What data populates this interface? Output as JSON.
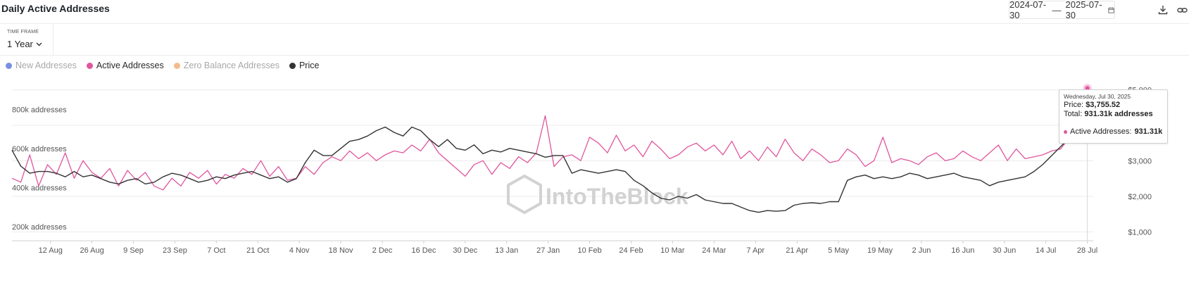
{
  "header": {
    "title": "Daily Active Addresses",
    "date_start": "2024-07-30",
    "date_sep": "—",
    "date_end": "2025-07-30",
    "icons": [
      "calendar-icon",
      "download-icon",
      "link-icon"
    ]
  },
  "timeframe": {
    "label": "TIME FRAME",
    "value": "1 Year"
  },
  "legend": [
    {
      "name": "New Addresses",
      "color": "#7b8fe0",
      "active": false
    },
    {
      "name": "Active Addresses",
      "color": "#e0569e",
      "active": true
    },
    {
      "name": "Zero Balance Addresses",
      "color": "#f5bb8c",
      "active": false
    },
    {
      "name": "Price",
      "color": "#333333",
      "active": true
    }
  ],
  "tooltip": {
    "date": "Wednesday, Jul 30, 2025",
    "price_label": "Price:",
    "price_value": "$3,755.52",
    "total_label": "Total:",
    "total_value": "931.31k addresses",
    "series_label": "Active Addresses:",
    "series_value": "931.31k"
  },
  "watermark": "IntoTheBlock",
  "chart_data": {
    "type": "line",
    "left_axis": {
      "ticks": [
        200000,
        400000,
        600000,
        800000
      ],
      "labels": [
        "200k addresses",
        "400k addresses",
        "600k addresses",
        "800k addresses"
      ],
      "range": [
        150000,
        950000
      ]
    },
    "right_axis": {
      "ticks": [
        1000,
        2000,
        3000,
        4000,
        5000
      ],
      "labels": [
        "$1,000",
        "$2,000",
        "$3,000",
        "$4,000",
        "$5,000"
      ],
      "range": [
        750,
        5150
      ]
    },
    "x_labels": [
      "12 Aug",
      "26 Aug",
      "9 Sep",
      "23 Sep",
      "7 Oct",
      "21 Oct",
      "4 Nov",
      "18 Nov",
      "2 Dec",
      "16 Dec",
      "30 Dec",
      "13 Jan",
      "27 Jan",
      "10 Feb",
      "24 Feb",
      "10 Mar",
      "24 Mar",
      "7 Apr",
      "21 Apr",
      "5 May",
      "19 May",
      "2 Jun",
      "16 Jun",
      "30 Jun",
      "14 Jul",
      "28 Jul"
    ],
    "x_label_days": [
      13,
      27,
      41,
      55,
      69,
      83,
      97,
      111,
      125,
      139,
      153,
      167,
      181,
      195,
      209,
      223,
      237,
      251,
      265,
      279,
      293,
      307,
      321,
      335,
      349,
      363
    ],
    "series": [
      {
        "name": "Active Addresses",
        "color": "#e0569e",
        "axis": "left",
        "points": [
          [
            0,
            470
          ],
          [
            3,
            450
          ],
          [
            6,
            590
          ],
          [
            9,
            430
          ],
          [
            12,
            540
          ],
          [
            15,
            490
          ],
          [
            18,
            600
          ],
          [
            21,
            470
          ],
          [
            24,
            560
          ],
          [
            27,
            500
          ],
          [
            30,
            470
          ],
          [
            33,
            520
          ],
          [
            36,
            430
          ],
          [
            39,
            510
          ],
          [
            42,
            460
          ],
          [
            45,
            500
          ],
          [
            48,
            430
          ],
          [
            51,
            410
          ],
          [
            54,
            470
          ],
          [
            57,
            430
          ],
          [
            60,
            500
          ],
          [
            63,
            470
          ],
          [
            66,
            510
          ],
          [
            69,
            440
          ],
          [
            72,
            490
          ],
          [
            75,
            470
          ],
          [
            78,
            520
          ],
          [
            81,
            490
          ],
          [
            84,
            560
          ],
          [
            87,
            480
          ],
          [
            90,
            530
          ],
          [
            93,
            460
          ],
          [
            96,
            470
          ],
          [
            99,
            530
          ],
          [
            102,
            490
          ],
          [
            105,
            550
          ],
          [
            108,
            580
          ],
          [
            111,
            560
          ],
          [
            114,
            610
          ],
          [
            117,
            570
          ],
          [
            120,
            600
          ],
          [
            123,
            560
          ],
          [
            126,
            590
          ],
          [
            129,
            610
          ],
          [
            132,
            600
          ],
          [
            135,
            640
          ],
          [
            138,
            610
          ],
          [
            141,
            670
          ],
          [
            144,
            600
          ],
          [
            147,
            560
          ],
          [
            150,
            520
          ],
          [
            153,
            480
          ],
          [
            156,
            540
          ],
          [
            159,
            560
          ],
          [
            162,
            490
          ],
          [
            165,
            550
          ],
          [
            168,
            520
          ],
          [
            171,
            580
          ],
          [
            174,
            550
          ],
          [
            177,
            600
          ],
          [
            180,
            790
          ],
          [
            183,
            530
          ],
          [
            186,
            580
          ],
          [
            189,
            590
          ],
          [
            192,
            560
          ],
          [
            195,
            680
          ],
          [
            198,
            650
          ],
          [
            201,
            600
          ],
          [
            204,
            690
          ],
          [
            207,
            610
          ],
          [
            210,
            640
          ],
          [
            213,
            580
          ],
          [
            216,
            660
          ],
          [
            219,
            620
          ],
          [
            222,
            570
          ],
          [
            225,
            590
          ],
          [
            228,
            630
          ],
          [
            231,
            650
          ],
          [
            234,
            610
          ],
          [
            237,
            640
          ],
          [
            240,
            590
          ],
          [
            243,
            660
          ],
          [
            246,
            570
          ],
          [
            249,
            610
          ],
          [
            252,
            560
          ],
          [
            255,
            630
          ],
          [
            258,
            580
          ],
          [
            261,
            670
          ],
          [
            264,
            600
          ],
          [
            267,
            560
          ],
          [
            270,
            620
          ],
          [
            273,
            590
          ],
          [
            276,
            550
          ],
          [
            279,
            560
          ],
          [
            282,
            620
          ],
          [
            285,
            590
          ],
          [
            288,
            530
          ],
          [
            291,
            560
          ],
          [
            294,
            680
          ],
          [
            297,
            550
          ],
          [
            300,
            570
          ],
          [
            303,
            560
          ],
          [
            306,
            540
          ],
          [
            309,
            580
          ],
          [
            312,
            600
          ],
          [
            315,
            560
          ],
          [
            318,
            570
          ],
          [
            321,
            610
          ],
          [
            324,
            580
          ],
          [
            327,
            560
          ],
          [
            330,
            600
          ],
          [
            333,
            640
          ],
          [
            336,
            560
          ],
          [
            339,
            620
          ],
          [
            342,
            570
          ],
          [
            345,
            580
          ],
          [
            348,
            590
          ],
          [
            351,
            610
          ],
          [
            354,
            620
          ],
          [
            357,
            680
          ],
          [
            360,
            730
          ],
          [
            362,
            760
          ],
          [
            363,
            931
          ]
        ]
      },
      {
        "name": "Price",
        "color": "#333333",
        "axis": "right",
        "points": [
          [
            0,
            3300
          ],
          [
            3,
            2850
          ],
          [
            6,
            2650
          ],
          [
            9,
            2700
          ],
          [
            12,
            2700
          ],
          [
            15,
            2650
          ],
          [
            18,
            2550
          ],
          [
            21,
            2700
          ],
          [
            24,
            2550
          ],
          [
            27,
            2600
          ],
          [
            30,
            2500
          ],
          [
            33,
            2400
          ],
          [
            36,
            2350
          ],
          [
            39,
            2450
          ],
          [
            42,
            2500
          ],
          [
            45,
            2350
          ],
          [
            48,
            2400
          ],
          [
            51,
            2550
          ],
          [
            54,
            2650
          ],
          [
            57,
            2600
          ],
          [
            60,
            2500
          ],
          [
            63,
            2400
          ],
          [
            66,
            2450
          ],
          [
            69,
            2550
          ],
          [
            72,
            2500
          ],
          [
            75,
            2600
          ],
          [
            78,
            2650
          ],
          [
            81,
            2700
          ],
          [
            84,
            2600
          ],
          [
            87,
            2500
          ],
          [
            90,
            2550
          ],
          [
            93,
            2400
          ],
          [
            96,
            2500
          ],
          [
            99,
            2950
          ],
          [
            102,
            3300
          ],
          [
            105,
            3150
          ],
          [
            108,
            3150
          ],
          [
            111,
            3350
          ],
          [
            114,
            3550
          ],
          [
            117,
            3600
          ],
          [
            120,
            3700
          ],
          [
            123,
            3850
          ],
          [
            126,
            3950
          ],
          [
            129,
            3800
          ],
          [
            132,
            3700
          ],
          [
            135,
            3950
          ],
          [
            138,
            3850
          ],
          [
            141,
            3600
          ],
          [
            144,
            3400
          ],
          [
            147,
            3600
          ],
          [
            150,
            3350
          ],
          [
            153,
            3300
          ],
          [
            156,
            3450
          ],
          [
            159,
            3200
          ],
          [
            162,
            3300
          ],
          [
            165,
            3250
          ],
          [
            168,
            3350
          ],
          [
            171,
            3300
          ],
          [
            174,
            3250
          ],
          [
            177,
            3200
          ],
          [
            180,
            3100
          ],
          [
            183,
            3150
          ],
          [
            186,
            3150
          ],
          [
            189,
            2650
          ],
          [
            192,
            2750
          ],
          [
            195,
            2700
          ],
          [
            198,
            2650
          ],
          [
            201,
            2700
          ],
          [
            204,
            2750
          ],
          [
            207,
            2700
          ],
          [
            210,
            2450
          ],
          [
            213,
            2300
          ],
          [
            216,
            2100
          ],
          [
            219,
            1950
          ],
          [
            222,
            1900
          ],
          [
            225,
            2000
          ],
          [
            228,
            1950
          ],
          [
            231,
            2050
          ],
          [
            234,
            1900
          ],
          [
            237,
            1850
          ],
          [
            240,
            1800
          ],
          [
            243,
            1800
          ],
          [
            246,
            1700
          ],
          [
            249,
            1600
          ],
          [
            252,
            1550
          ],
          [
            255,
            1600
          ],
          [
            258,
            1580
          ],
          [
            261,
            1600
          ],
          [
            264,
            1750
          ],
          [
            267,
            1800
          ],
          [
            270,
            1820
          ],
          [
            273,
            1800
          ],
          [
            276,
            1850
          ],
          [
            279,
            1850
          ],
          [
            282,
            2450
          ],
          [
            285,
            2550
          ],
          [
            288,
            2600
          ],
          [
            291,
            2500
          ],
          [
            294,
            2550
          ],
          [
            297,
            2500
          ],
          [
            300,
            2550
          ],
          [
            303,
            2650
          ],
          [
            306,
            2600
          ],
          [
            309,
            2500
          ],
          [
            312,
            2550
          ],
          [
            315,
            2600
          ],
          [
            318,
            2650
          ],
          [
            321,
            2550
          ],
          [
            324,
            2500
          ],
          [
            327,
            2450
          ],
          [
            330,
            2300
          ],
          [
            333,
            2400
          ],
          [
            336,
            2450
          ],
          [
            339,
            2500
          ],
          [
            342,
            2550
          ],
          [
            345,
            2700
          ],
          [
            348,
            2900
          ],
          [
            351,
            3150
          ],
          [
            354,
            3400
          ],
          [
            357,
            3650
          ],
          [
            360,
            3750
          ],
          [
            362,
            3700
          ],
          [
            363,
            3755
          ]
        ]
      }
    ],
    "x_range": [
      0,
      365
    ],
    "grid": true,
    "legend_position": "top-left"
  }
}
